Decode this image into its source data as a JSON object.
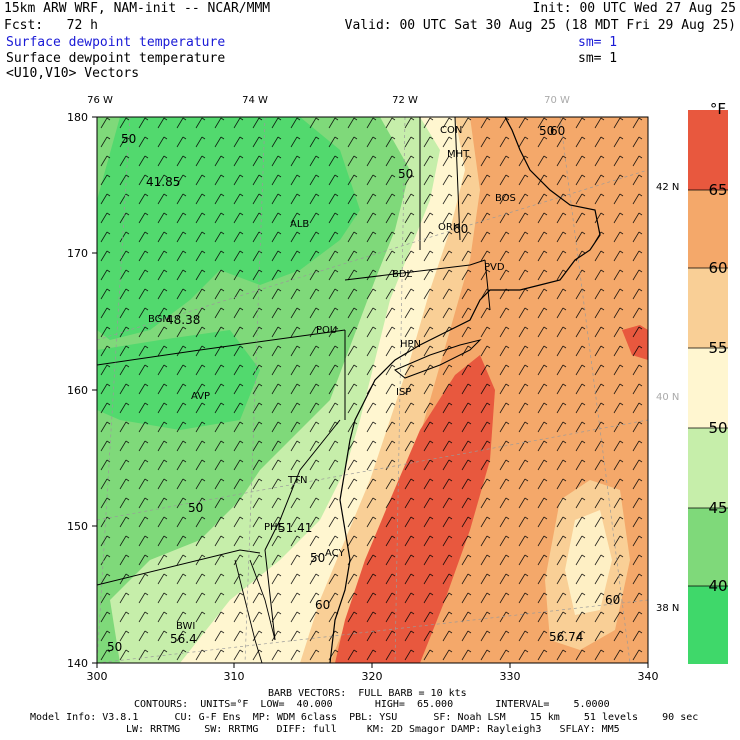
{
  "header": {
    "line1_left": "15km ARW WRF, NAM-init -- NCAR/MMM",
    "line1_right": "Init: 00 UTC Wed 27 Aug 25",
    "line2_left": "Fcst:   72 h",
    "line2_right": "Valid: 00 UTC Sat 30 Aug 25 (18 MDT Fri 29 Aug 25)",
    "field1_label": "Surface dewpoint temperature",
    "field1_sm": "sm= 1",
    "field2_label": "Surface dewpoint temperature",
    "field2_sm": "sm= 1",
    "field3_label": "<U10,V10> Vectors"
  },
  "map": {
    "top_lon_labels": [
      "76 W",
      "74 W",
      "72 W",
      "70 W"
    ],
    "right_lat_labels": [
      "42 N",
      "40 N",
      "38 N"
    ],
    "x_ticks": [
      "300",
      "310",
      "320",
      "330",
      "340"
    ],
    "y_ticks": [
      "140",
      "150",
      "160",
      "170",
      "180"
    ],
    "station_labels": [
      "CON",
      "MHT",
      "BOS",
      "ORH",
      "ALB",
      "BDL",
      "PVD",
      "BGM",
      "POU",
      "HPN",
      "AVP",
      "ISP",
      "TTN",
      "PHL",
      "ACY",
      "BWI"
    ],
    "contour_labels": [
      "50",
      "50",
      "50",
      "60",
      "50",
      "60",
      "60",
      "50",
      "60",
      "50"
    ],
    "value_labels": [
      "41.85",
      "48.38",
      "51.41",
      "56.4",
      "56.74"
    ],
    "colors": {
      "c40": "#3fd86a",
      "c45": "#7fd97a",
      "c50": "#c6eeaa",
      "c55": "#fff6d0",
      "c60": "#f9cf96",
      "c65": "#f4a86a",
      "c70": "#e8583e",
      "land_line": "#000000",
      "barb": "#000000"
    }
  },
  "colorbar": {
    "unit": "°F",
    "labels": [
      "65",
      "60",
      "55",
      "50",
      "45",
      "40"
    ]
  },
  "footer": {
    "line1": "BARB VECTORS:  FULL BARB = 10 kts",
    "line2": "CONTOURS:  UNITS=°F  LOW=  40.000       HIGH=  65.000       INTERVAL=    5.0000",
    "line3": "Model Info: V3.8.1      CU: G-F Ens  MP: WDM 6class  PBL: YSU      SF: Noah LSM    15 km    51 levels    90 sec",
    "line4": "LW: RRTMG    SW: RRTMG   DIFF: full     KM: 2D Smagor DAMP: Rayleigh3   SFLAY: MM5"
  }
}
